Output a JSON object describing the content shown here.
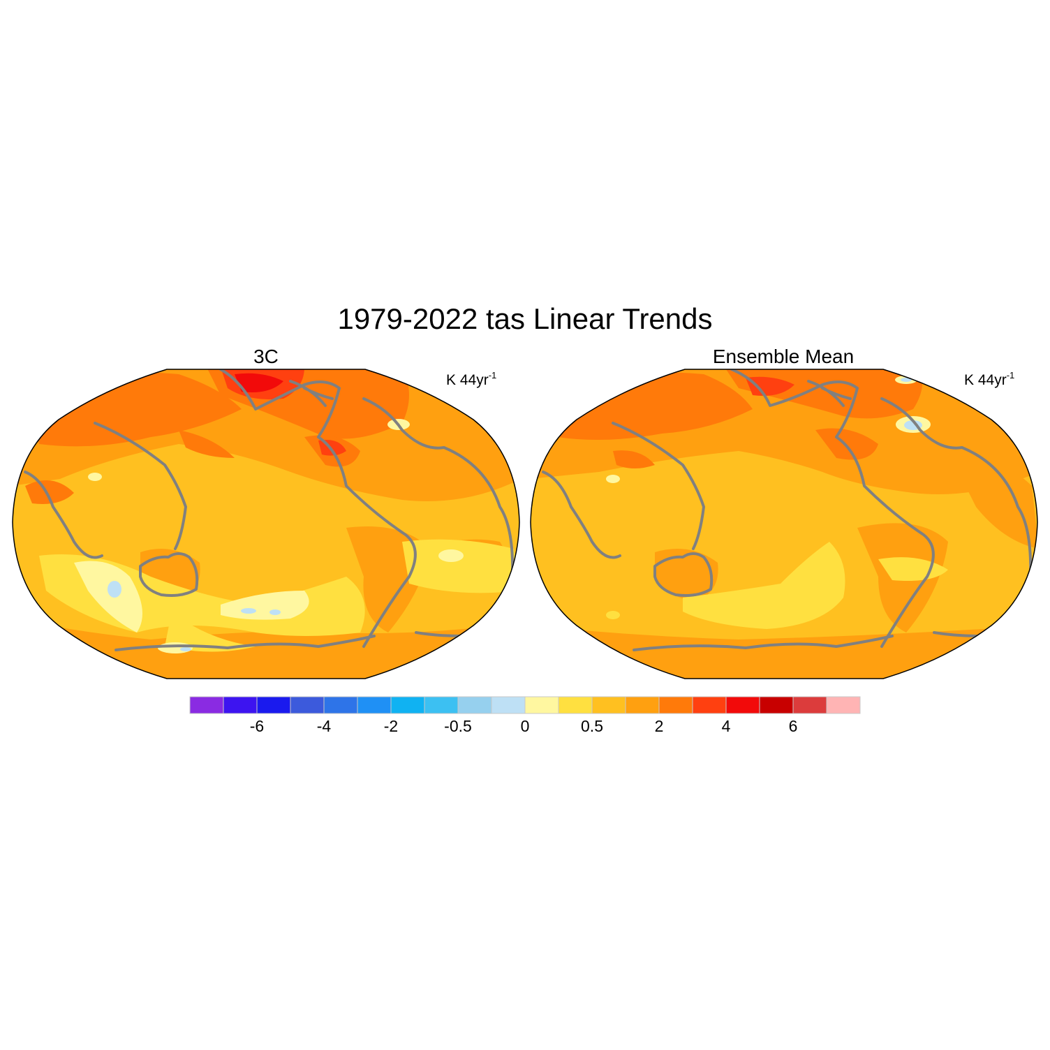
{
  "title": "1979-2022 tas Linear Trends",
  "panels": [
    {
      "title": "3C",
      "units_base": "K 44yr",
      "units_exp": "-1"
    },
    {
      "title": "Ensemble Mean",
      "units_base": "K 44yr",
      "units_exp": "-1"
    }
  ],
  "projection": "Robinson, centered on the Pacific",
  "colorbar": {
    "colors": [
      "#8a2be2",
      "#3d14f0",
      "#1a1aee",
      "#3c5adc",
      "#2e74e8",
      "#1f90f5",
      "#10b2f2",
      "#3cc0f2",
      "#96d0ee",
      "#bee0f5",
      "#fff7a0",
      "#ffe040",
      "#ffc020",
      "#ffa010",
      "#ff7a0a",
      "#ff4010",
      "#f20a0a",
      "#c80000",
      "#dc3c3c",
      "#ffb4b4"
    ],
    "tick_labels": [
      "-6",
      "-4",
      "-2",
      "-0.5",
      "0",
      "0.5",
      "2",
      "4",
      "6"
    ]
  },
  "style": {
    "coastline_color": "#808080",
    "outline_color": "#000000"
  }
}
